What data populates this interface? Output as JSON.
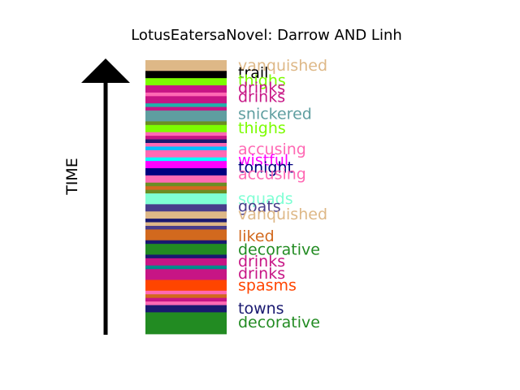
{
  "chart_data": {
    "type": "bar",
    "title": "LotusEatersaNovel: Darrow AND Linh",
    "ylabel": "TIME",
    "bands": [
      {
        "color": "#deb887",
        "weight": 3
      },
      {
        "color": "#000000",
        "weight": 2
      },
      {
        "color": "#7cfc00",
        "weight": 2
      },
      {
        "color": "#c71585",
        "weight": 2
      },
      {
        "color": "#ff69b4",
        "weight": 1
      },
      {
        "color": "#c71585",
        "weight": 2
      },
      {
        "color": "#20b2aa",
        "weight": 1
      },
      {
        "color": "#c71585",
        "weight": 1
      },
      {
        "color": "#5f9ea0",
        "weight": 3
      },
      {
        "color": "#6b8e23",
        "weight": 1
      },
      {
        "color": "#7cfc00",
        "weight": 2
      },
      {
        "color": "#ff69b4",
        "weight": 1
      },
      {
        "color": "#c71585",
        "weight": 1
      },
      {
        "color": "#191970",
        "weight": 1
      },
      {
        "color": "#ff69b4",
        "weight": 1
      },
      {
        "color": "#00bfff",
        "weight": 1
      },
      {
        "color": "#ff69b4",
        "weight": 2
      },
      {
        "color": "#00ffff",
        "weight": 1
      },
      {
        "color": "#ff00ff",
        "weight": 2
      },
      {
        "color": "#000080",
        "weight": 2
      },
      {
        "color": "#ff69b4",
        "weight": 2
      },
      {
        "color": "#6b8e23",
        "weight": 1
      },
      {
        "color": "#d2691e",
        "weight": 1
      },
      {
        "color": "#6b8e23",
        "weight": 1
      },
      {
        "color": "#7fffd4",
        "weight": 3
      },
      {
        "color": "#483d8b",
        "weight": 2
      },
      {
        "color": "#deb887",
        "weight": 2
      },
      {
        "color": "#191970",
        "weight": 1
      },
      {
        "color": "#deb887",
        "weight": 1
      },
      {
        "color": "#483d8b",
        "weight": 1
      },
      {
        "color": "#d2691e",
        "weight": 3
      },
      {
        "color": "#191970",
        "weight": 1
      },
      {
        "color": "#228b22",
        "weight": 3
      },
      {
        "color": "#191970",
        "weight": 1
      },
      {
        "color": "#c71585",
        "weight": 2
      },
      {
        "color": "#008b8b",
        "weight": 1
      },
      {
        "color": "#c71585",
        "weight": 3
      },
      {
        "color": "#ff4500",
        "weight": 3
      },
      {
        "color": "#ff69b4",
        "weight": 1
      },
      {
        "color": "#d2691e",
        "weight": 1
      },
      {
        "color": "#c71585",
        "weight": 1
      },
      {
        "color": "#ff69b4",
        "weight": 1
      },
      {
        "color": "#191970",
        "weight": 2
      },
      {
        "color": "#228b22",
        "weight": 6
      }
    ],
    "labels": [
      {
        "text": "vanquished",
        "color": "#deb887",
        "pos": 0.018
      },
      {
        "text": "trail",
        "color": "#000000",
        "pos": 0.045
      },
      {
        "text": "thighs",
        "color": "#7cfc00",
        "pos": 0.072
      },
      {
        "text": "drinks",
        "color": "#c71585",
        "pos": 0.099
      },
      {
        "text": "drinks",
        "color": "#c71585",
        "pos": 0.132
      },
      {
        "text": "snickered",
        "color": "#5f9ea0",
        "pos": 0.195
      },
      {
        "text": "thighs",
        "color": "#7cfc00",
        "pos": 0.246
      },
      {
        "text": "accusing",
        "color": "#ff69b4",
        "pos": 0.324
      },
      {
        "text": "wistful",
        "color": "#ff00ff",
        "pos": 0.363
      },
      {
        "text": "tonight",
        "color": "#000080",
        "pos": 0.39
      },
      {
        "text": "accusing",
        "color": "#ff69b4",
        "pos": 0.414
      },
      {
        "text": "squads",
        "color": "#7fffd4",
        "pos": 0.504
      },
      {
        "text": "goats",
        "color": "#483d8b",
        "pos": 0.533
      },
      {
        "text": "vanquished",
        "color": "#deb887",
        "pos": 0.561
      },
      {
        "text": "liked",
        "color": "#d2691e",
        "pos": 0.641
      },
      {
        "text": "decorative",
        "color": "#228b22",
        "pos": 0.69
      },
      {
        "text": "drinks",
        "color": "#c71585",
        "pos": 0.733
      },
      {
        "text": "drinks",
        "color": "#c71585",
        "pos": 0.778
      },
      {
        "text": "spasms",
        "color": "#ff4500",
        "pos": 0.82
      },
      {
        "text": "towns",
        "color": "#191970",
        "pos": 0.905
      },
      {
        "text": "decorative",
        "color": "#228b22",
        "pos": 0.955
      }
    ]
  }
}
